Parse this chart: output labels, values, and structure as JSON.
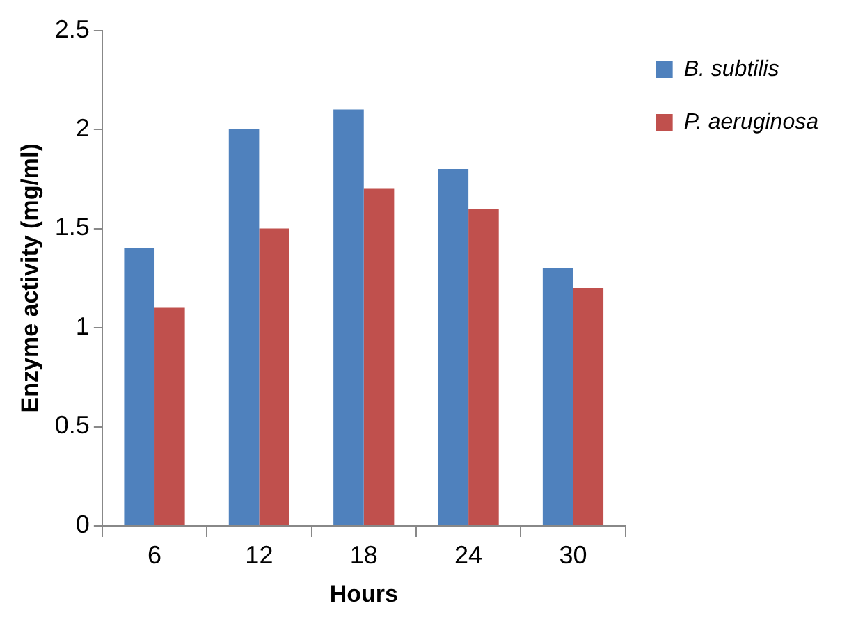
{
  "chart_data": {
    "type": "bar",
    "xlabel": "Hours",
    "ylabel": "Enzyme activity (mg/ml)",
    "categories": [
      "6",
      "12",
      "18",
      "24",
      "30"
    ],
    "series": [
      {
        "name": "B. subtilis",
        "color": "#4f81bd",
        "values": [
          1.4,
          2.0,
          2.1,
          1.8,
          1.3
        ]
      },
      {
        "name": "P. aeruginosa",
        "color": "#c0504d",
        "values": [
          1.1,
          1.5,
          1.7,
          1.6,
          1.2
        ]
      }
    ],
    "ylim": [
      0,
      2.5
    ],
    "yticks": [
      0,
      0.5,
      1,
      1.5,
      2,
      2.5
    ],
    "grid": false,
    "legend": "right"
  }
}
